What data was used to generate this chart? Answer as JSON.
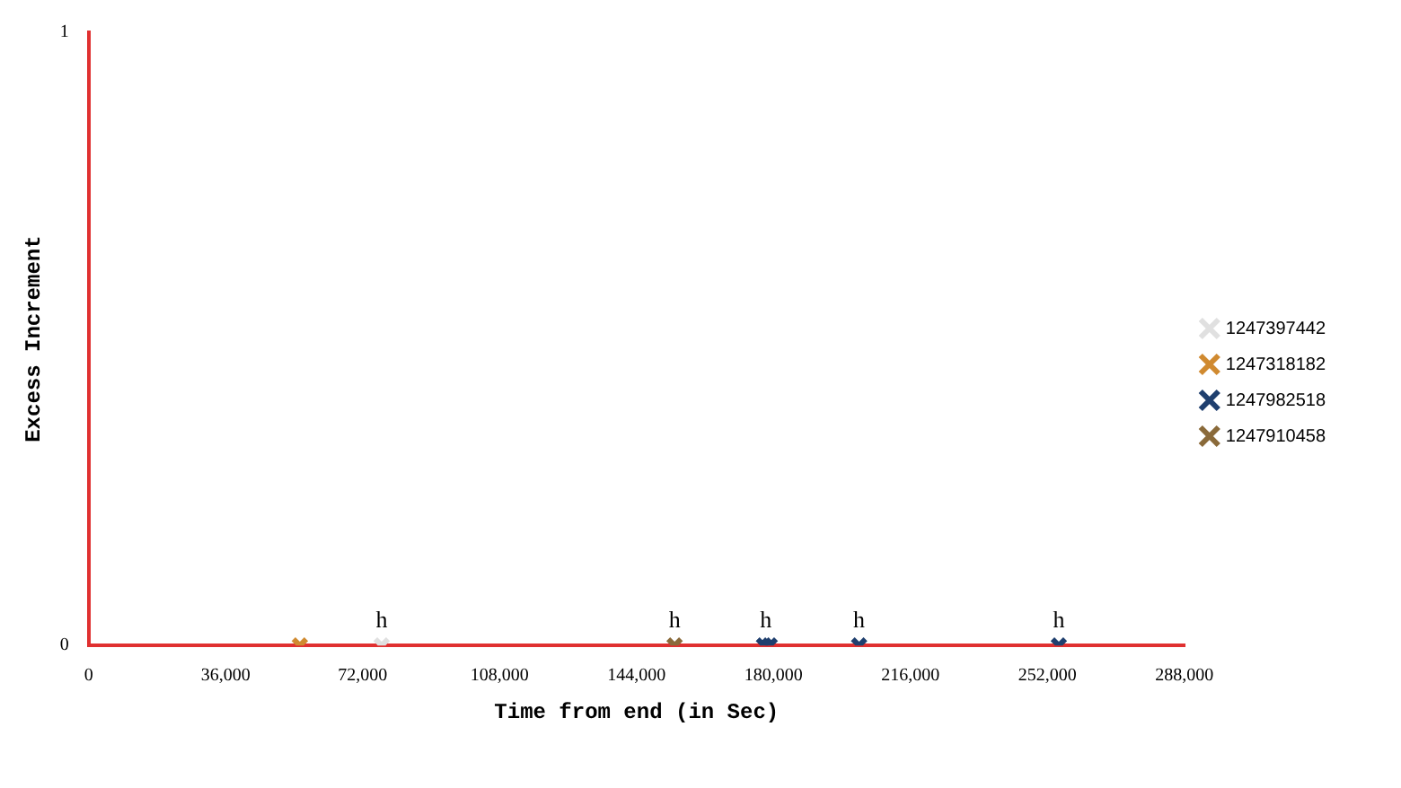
{
  "chart_data": {
    "type": "scatter",
    "xlabel": "Time from end (in Sec)",
    "ylabel": "Excess Increment",
    "xlim": [
      0,
      288000
    ],
    "xticks": [
      {
        "value": 0,
        "label": "0"
      },
      {
        "value": 36000,
        "label": "36,000"
      },
      {
        "value": 72000,
        "label": "72,000"
      },
      {
        "value": 108000,
        "label": "108,000"
      },
      {
        "value": 144000,
        "label": "144,000"
      },
      {
        "value": 180000,
        "label": "180,000"
      },
      {
        "value": 216000,
        "label": "216,000"
      },
      {
        "value": 252000,
        "label": "252,000"
      },
      {
        "value": 288000,
        "label": "288,000"
      }
    ],
    "ylim": [
      0,
      1
    ],
    "yticks": [
      0,
      1
    ],
    "grid": false,
    "legend": "right",
    "marker": "cross",
    "series": [
      {
        "name": "1247397442",
        "color": "#e0e0e0",
        "x": [
          77000
        ],
        "values": [
          0
        ]
      },
      {
        "name": "1247318182",
        "color": "#d08a30",
        "x": [
          55500
        ],
        "values": [
          0
        ]
      },
      {
        "name": "1247982518",
        "color": "#1f3f6e",
        "x": [
          177500,
          179000,
          202500,
          255000
        ],
        "values": [
          0,
          0,
          0,
          0
        ]
      },
      {
        "name": "1247910458",
        "color": "#8a6a3a",
        "x": [
          154000
        ],
        "values": [
          0
        ]
      }
    ],
    "annotations": [
      {
        "text": "h",
        "x": 77000,
        "y": 0
      },
      {
        "text": "h",
        "x": 154000,
        "y": 0
      },
      {
        "text": "h",
        "x": 178000,
        "y": 0
      },
      {
        "text": "h",
        "x": 202500,
        "y": 0
      },
      {
        "text": "h",
        "x": 255000,
        "y": 0
      }
    ]
  }
}
